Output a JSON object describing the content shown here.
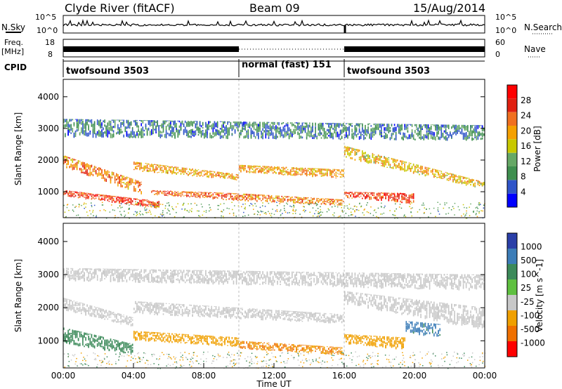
{
  "header": {
    "station": "Clyde River (fitACF)",
    "beam": "Beam 09",
    "date": "15/Aug/2014"
  },
  "noise_panel": {
    "left_label": "N.Sky",
    "right_label": "N.Search",
    "left_ticks": [
      "10^5",
      "10^0"
    ],
    "right_ticks": [
      "10^5",
      "10^0"
    ]
  },
  "freq_panel": {
    "left_label_1": "Freq.",
    "left_label_2": "[MHz]",
    "right_label": "Nave",
    "left_ticks": [
      "18",
      "8"
    ],
    "right_ticks": [
      "60",
      "0"
    ]
  },
  "cpid": {
    "label": "CPID",
    "segments": [
      {
        "name": "twofsound 3503",
        "start_hour": 0,
        "end_hour": 10
      },
      {
        "name": "normal (fast) 151",
        "start_hour": 10,
        "end_hour": 16
      },
      {
        "name": "twofsound 3503",
        "start_hour": 16,
        "end_hour": 24
      }
    ]
  },
  "colors": {
    "power_scale": [
      "#0000ff",
      "#2f55c9",
      "#3f8f4f",
      "#66a866",
      "#c8c800",
      "#f5a000",
      "#f07020",
      "#e02010",
      "#ff0000"
    ],
    "velocity_scale": [
      "#2a3fa8",
      "#3c7db8",
      "#3c8a5a",
      "#5fc040",
      "#c8c8c8",
      "#f0a000",
      "#f07000",
      "#ff0000"
    ]
  },
  "chart_data": [
    {
      "type": "heatmap",
      "panel": "power",
      "xlabel": "",
      "ylabel": "Slant Range [km]",
      "xlim": [
        0,
        24
      ],
      "ylim": [
        180,
        4550
      ],
      "y_ticks": [
        1000,
        2000,
        3000,
        4000
      ],
      "colorbar_label": "Power [dB]",
      "colorbar_ticks": [
        "4",
        "8",
        "12",
        "16",
        "20",
        "24",
        "28"
      ],
      "colorbar_range": [
        0,
        32
      ],
      "bands": [
        {
          "x0": 0.0,
          "x1": 4.5,
          "y0": 2150,
          "y1": 1750,
          "y2": 1300,
          "y3": 900,
          "value": 22
        },
        {
          "x0": 0.0,
          "x1": 5.5,
          "y0": 1050,
          "y1": 850,
          "y2": 700,
          "y3": 450,
          "value": 26
        },
        {
          "x0": 4.0,
          "x1": 10.0,
          "y0": 1950,
          "y1": 1650,
          "y2": 1550,
          "y3": 1350,
          "value": 20
        },
        {
          "x0": 5.0,
          "x1": 10.0,
          "y0": 1050,
          "y1": 900,
          "y2": 950,
          "y3": 700,
          "value": 24
        },
        {
          "x0": 10.0,
          "x1": 16.0,
          "y0": 1850,
          "y1": 1600,
          "y2": 1700,
          "y3": 1400,
          "value": 20
        },
        {
          "x0": 10.0,
          "x1": 16.0,
          "y0": 950,
          "y1": 700,
          "y2": 750,
          "y3": 550,
          "value": 22
        },
        {
          "x0": 16.0,
          "x1": 24.0,
          "y0": 2450,
          "y1": 2050,
          "y2": 1300,
          "y3": 1050,
          "value": 18
        },
        {
          "x0": 16.0,
          "x1": 20.0,
          "y0": 1000,
          "y1": 800,
          "y2": 950,
          "y3": 600,
          "value": 26
        },
        {
          "x0": 0.0,
          "x1": 24.0,
          "y0": 3300,
          "y1": 2700,
          "y2": 3100,
          "y3": 2600,
          "value": 8
        }
      ]
    },
    {
      "type": "heatmap",
      "panel": "velocity",
      "xlabel": "Time UT",
      "ylabel": "Slant Range [km]",
      "xlim": [
        0,
        24
      ],
      "ylim": [
        180,
        4550
      ],
      "x_ticks": [
        "00:00",
        "04:00",
        "08:00",
        "12:00",
        "16:00",
        "20:00",
        "00:00"
      ],
      "y_ticks": [
        1000,
        2000,
        3000,
        4000
      ],
      "colorbar_label": "Velocity [m s^-1]",
      "colorbar_ticks": [
        "1000",
        "500",
        "100",
        "25",
        "-25",
        "-100",
        "-500",
        "-1000"
      ],
      "bands": [
        {
          "x0": 0.0,
          "x1": 4.0,
          "y0": 1400,
          "y1": 900,
          "y2": 900,
          "y3": 550,
          "value": 150
        },
        {
          "x0": 0.0,
          "x1": 4.0,
          "y0": 2300,
          "y1": 1900,
          "y2": 1700,
          "y3": 1400,
          "value": 0
        },
        {
          "x0": 4.0,
          "x1": 10.0,
          "y0": 1300,
          "y1": 1000,
          "y2": 1100,
          "y3": 800,
          "value": -120
        },
        {
          "x0": 4.0,
          "x1": 16.0,
          "y0": 2200,
          "y1": 1800,
          "y2": 1800,
          "y3": 1500,
          "value": 0
        },
        {
          "x0": 10.0,
          "x1": 16.0,
          "y0": 1000,
          "y1": 750,
          "y2": 800,
          "y3": 550,
          "value": -300
        },
        {
          "x0": 16.0,
          "x1": 24.0,
          "y0": 2500,
          "y1": 2100,
          "y2": 2000,
          "y3": 1300,
          "value": 0
        },
        {
          "x0": 16.0,
          "x1": 19.5,
          "y0": 1200,
          "y1": 900,
          "y2": 1100,
          "y3": 700,
          "value": -150
        },
        {
          "x0": 19.5,
          "x1": 21.5,
          "y0": 1600,
          "y1": 1200,
          "y2": 1500,
          "y3": 1100,
          "value": 400
        },
        {
          "x0": 0.0,
          "x1": 24.0,
          "y0": 3200,
          "y1": 2800,
          "y2": 3000,
          "y3": 2500,
          "value": 0
        }
      ]
    }
  ]
}
